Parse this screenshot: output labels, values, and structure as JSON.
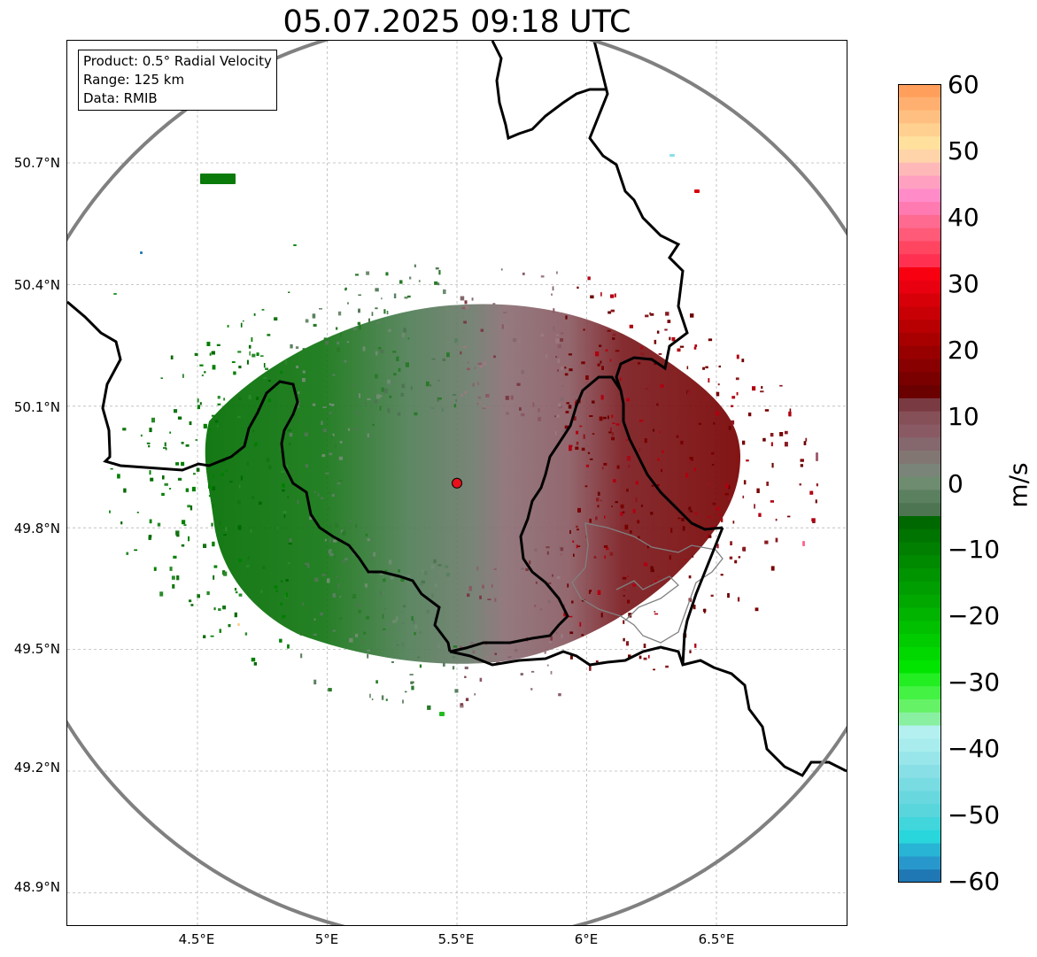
{
  "title": "05.07.2025 09:18 UTC",
  "info_box": {
    "product": "Product: 0.5° Radial Velocity",
    "range": "Range: 125 km",
    "data_source": "Data: RMIB"
  },
  "map": {
    "lat_ticks": [
      "50.7°N",
      "50.4°N",
      "50.1°N",
      "49.8°N",
      "49.5°N",
      "49.2°N",
      "48.9°N"
    ],
    "lon_ticks": [
      "4.5°E",
      "5°E",
      "5.5°E",
      "6°E",
      "6.5°E"
    ],
    "radar_site": {
      "name": "radar-site",
      "lon": 5.5,
      "lat": 49.91,
      "color": "#e8101a"
    },
    "range_ring_color": "#808080",
    "border_color": "#000000",
    "province_color": "#808080",
    "grid": true
  },
  "colorbar": {
    "label": "m/s",
    "ticks": [
      "60",
      "50",
      "40",
      "30",
      "20",
      "10",
      "0",
      "−10",
      "−20",
      "−30",
      "−40",
      "−50",
      "−60"
    ],
    "min": -60,
    "max": 60,
    "colors_top_to_bottom": [
      "#ff9f5b",
      "#ffb070",
      "#ffbf80",
      "#ffd090",
      "#ffe09c",
      "#ffd4a8",
      "#ffb8b8",
      "#ffa0c0",
      "#ff8cc8",
      "#ff7ab0",
      "#ff6a90",
      "#ff5a78",
      "#ff4560",
      "#ff3050",
      "#f80010",
      "#e80010",
      "#d80008",
      "#c80005",
      "#b80003",
      "#a80000",
      "#980000",
      "#880000",
      "#7a0000",
      "#6a0000",
      "#7a3a42",
      "#865058",
      "#8a5a64",
      "#84686e",
      "#827672",
      "#7a8478",
      "#6e8c70",
      "#5a8060",
      "#4e7552",
      "#006800",
      "#007400",
      "#007f00",
      "#008a00",
      "#009400",
      "#009e00",
      "#00a800",
      "#00b400",
      "#00c000",
      "#00cc00",
      "#00d800",
      "#00e400",
      "#22ee22",
      "#44f244",
      "#66f266",
      "#88f0a0",
      "#b4f0f0",
      "#a8ecee",
      "#98e6ea",
      "#88e0e6",
      "#78dce2",
      "#68d8de",
      "#58d6dc",
      "#40d6dc",
      "#28d6dc",
      "#28b4d4",
      "#2898cc",
      "#1f77b4"
    ]
  }
}
